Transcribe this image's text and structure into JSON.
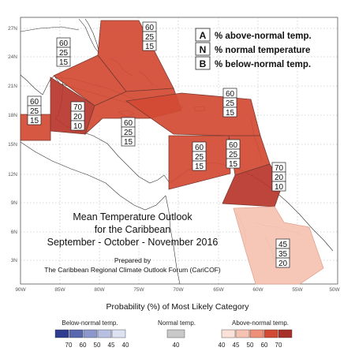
{
  "title": {
    "line1": "Mean Temperature Outlook",
    "line2": "for the Caribbean",
    "line3": "September - October - November 2016",
    "prepared_by": "Prepared by",
    "organization": "The Caribbean Regional Climate Outlook Forum (CariCOF)"
  },
  "key": [
    {
      "letter": "A",
      "text": "% above-normal temp."
    },
    {
      "letter": "N",
      "text": "% normal temperature"
    },
    {
      "letter": "B",
      "text": "% below-normal temp."
    }
  ],
  "axes": {
    "lat_labels": [
      "27N",
      "24N",
      "21N",
      "18N",
      "15N",
      "12N",
      "9N",
      "6N",
      "3N"
    ],
    "lon_labels": [
      "90W",
      "85W",
      "80W",
      "75W",
      "70W",
      "65W",
      "60W",
      "55W",
      "50W"
    ]
  },
  "regions": [
    {
      "name": "bahamas-florida",
      "above": 60,
      "normal": 25,
      "below": 15,
      "color": "#d24a33"
    },
    {
      "name": "nw-caribbean",
      "above": 60,
      "normal": 25,
      "below": 15,
      "color": "#d24a33"
    },
    {
      "name": "yucatan",
      "above": 60,
      "normal": 25,
      "below": 15,
      "color": "#d24a33"
    },
    {
      "name": "cuba-west",
      "above": 70,
      "normal": 20,
      "below": 10,
      "color": "#b8352a"
    },
    {
      "name": "central-caribbean",
      "above": 60,
      "normal": 25,
      "below": 15,
      "color": "#d24a33"
    },
    {
      "name": "leeward-islands",
      "above": 60,
      "normal": 25,
      "below": 15,
      "color": "#d24a33"
    },
    {
      "name": "southern-caribbean",
      "above": 60,
      "normal": 25,
      "below": 15,
      "color": "#d24a33"
    },
    {
      "name": "eastern-caribbean",
      "above": 60,
      "normal": 25,
      "below": 15,
      "color": "#d24a33"
    },
    {
      "name": "southeast-caribbean",
      "above": 70,
      "normal": 20,
      "below": 10,
      "color": "#b8352a"
    },
    {
      "name": "guianas",
      "above": 45,
      "normal": 35,
      "below": 20,
      "color": "#f6c3b3"
    }
  ],
  "scale": {
    "title": "Probability (%) of Most Likely Category",
    "below": {
      "label": "Below-normal temp.",
      "values": [
        "70",
        "60",
        "50",
        "45",
        "40"
      ],
      "colors": [
        "#2e3d8f",
        "#5867ae",
        "#8c98cb",
        "#b8c0e2",
        "#dde2f3"
      ]
    },
    "normal": {
      "label": "Normal temp.",
      "values": [
        "40"
      ],
      "colors": [
        "#c9c9c9"
      ]
    },
    "above": {
      "label": "Above-normal temp.",
      "values": [
        "40",
        "45",
        "50",
        "60",
        "70"
      ],
      "colors": [
        "#fbe2d8",
        "#f6c3b3",
        "#ee8f77",
        "#d24a33",
        "#a8302a"
      ]
    }
  }
}
